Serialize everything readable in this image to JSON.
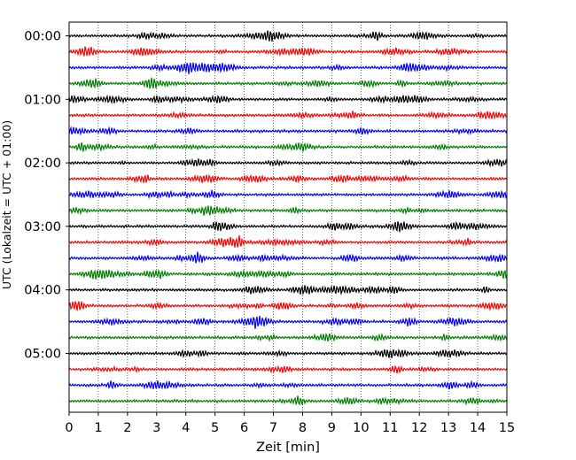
{
  "chart_data": {
    "type": "line",
    "title": "",
    "xlabel": "Zeit  [min]",
    "ylabel": "UTC (Lokalzeit = UTC + 01:00)",
    "xlim": [
      0,
      15
    ],
    "x_ticks": [
      0,
      1,
      2,
      3,
      4,
      5,
      6,
      7,
      8,
      9,
      10,
      11,
      12,
      13,
      14,
      15
    ],
    "y_tick_labels": [
      "00:00",
      "01:00",
      "02:00",
      "03:00",
      "04:00",
      "05:00"
    ],
    "grid": "vertical dotted at each minute",
    "row_minutes": 15,
    "row_colors": [
      "#000000",
      "#ff0000",
      "#0000ff",
      "#007f00"
    ],
    "series": [
      {
        "start": "00:00",
        "color": "#000000"
      },
      {
        "start": "00:15",
        "color": "#ff0000"
      },
      {
        "start": "00:30",
        "color": "#0000ff"
      },
      {
        "start": "00:45",
        "color": "#007f00"
      },
      {
        "start": "01:00",
        "color": "#000000"
      },
      {
        "start": "01:15",
        "color": "#ff0000"
      },
      {
        "start": "01:30",
        "color": "#0000ff"
      },
      {
        "start": "01:45",
        "color": "#007f00"
      },
      {
        "start": "02:00",
        "color": "#000000"
      },
      {
        "start": "02:15",
        "color": "#ff0000"
      },
      {
        "start": "02:30",
        "color": "#0000ff"
      },
      {
        "start": "02:45",
        "color": "#007f00"
      },
      {
        "start": "03:00",
        "color": "#000000"
      },
      {
        "start": "03:15",
        "color": "#ff0000"
      },
      {
        "start": "03:30",
        "color": "#0000ff"
      },
      {
        "start": "03:45",
        "color": "#007f00"
      },
      {
        "start": "04:00",
        "color": "#000000"
      },
      {
        "start": "04:15",
        "color": "#ff0000"
      },
      {
        "start": "04:30",
        "color": "#0000ff"
      },
      {
        "start": "04:45",
        "color": "#007f00"
      },
      {
        "start": "05:00",
        "color": "#000000"
      },
      {
        "start": "05:15",
        "color": "#ff0000"
      },
      {
        "start": "05:30",
        "color": "#0000ff"
      },
      {
        "start": "05:45",
        "color": "#007f00"
      }
    ]
  }
}
